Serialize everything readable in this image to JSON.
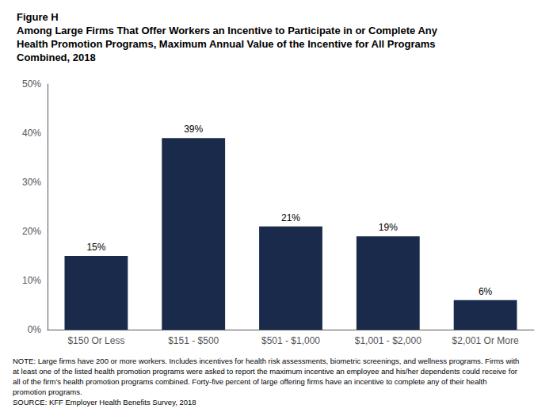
{
  "chart_data": {
    "type": "bar",
    "title": "Figure H\nAmong Large Firms That Offer Workers an Incentive to Participate in or Complete Any\nHealth Promotion Programs, Maximum Annual Value of the Incentive for All Programs\nCombined, 2018",
    "categories": [
      "$150 Or Less",
      "$151 - $500",
      "$501 - $1,000",
      "$1,001 - $2,000",
      "$2,001 Or More"
    ],
    "values": [
      15,
      39,
      21,
      19,
      6
    ],
    "value_labels": [
      "15%",
      "39%",
      "21%",
      "19%",
      "6%"
    ],
    "data_labels": true,
    "color": "#1a2a4a",
    "ylim": [
      0,
      50
    ],
    "yticks": [
      {
        "value": 0,
        "label": "0%"
      },
      {
        "value": 10,
        "label": "10%"
      },
      {
        "value": 20,
        "label": "20%"
      },
      {
        "value": 30,
        "label": "30%"
      },
      {
        "value": 40,
        "label": "40%"
      },
      {
        "value": 50,
        "label": "50%"
      }
    ],
    "grid": false,
    "annotations": [
      "NOTE: Large firms have 200 or more workers. Includes incentives for health risk assessments, biometric screenings, and wellness programs. Firms with",
      "at least one of the listed health promotion programs were asked to report the maximum incentive an employee and his/her dependents could receive for",
      "all of the firm’s health promotion programs combined. Forty-five percent of large offering firms have an incentive to complete any of their health",
      "promotion programs.",
      "SOURCE: KFF Employer Health Benefits Survey, 2018"
    ]
  }
}
